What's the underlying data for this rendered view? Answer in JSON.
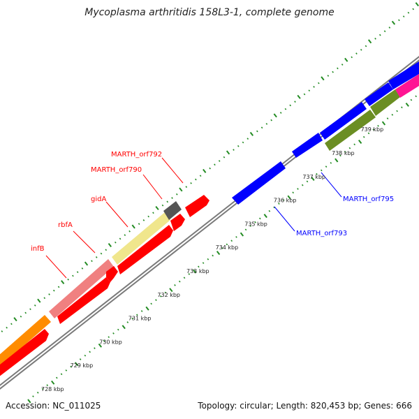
{
  "title": "Mycoplasma arthritidis 158L3-1, complete genome",
  "footer": {
    "accession": "Accession: NC_011025",
    "topology": "Topology: circular; Length: 820,453 bp; Genes: 666"
  },
  "ticks": [
    {
      "label": "728 kbp"
    },
    {
      "label": "729 kbp"
    },
    {
      "label": "730 kbp"
    },
    {
      "label": "731 kbp"
    },
    {
      "label": "732 kbp"
    },
    {
      "label": "733 kbp"
    },
    {
      "label": "734 kbp"
    },
    {
      "label": "735 kbp"
    },
    {
      "label": "736 kbp"
    },
    {
      "label": "737 kbp"
    },
    {
      "label": "738 kbp"
    },
    {
      "label": "739 kbp"
    }
  ],
  "gene_labels": {
    "infB": "infB",
    "rbfA": "rbfA",
    "gidA": "gidA",
    "orf790": "MARTH_orf790",
    "orf792": "MARTH_orf792",
    "orf793": "MARTH_orf793",
    "orf795": "MARTH_orf795"
  },
  "colors": {
    "red": "#ff0000",
    "blue": "#0000ff",
    "orange": "#ff8c00",
    "salmon": "#f08080",
    "khaki": "#f0e68c",
    "gray": "#555555",
    "olive": "#6b8e23",
    "pink": "#ff1493",
    "tick_green": "#228b22",
    "backbone": "#808080"
  }
}
